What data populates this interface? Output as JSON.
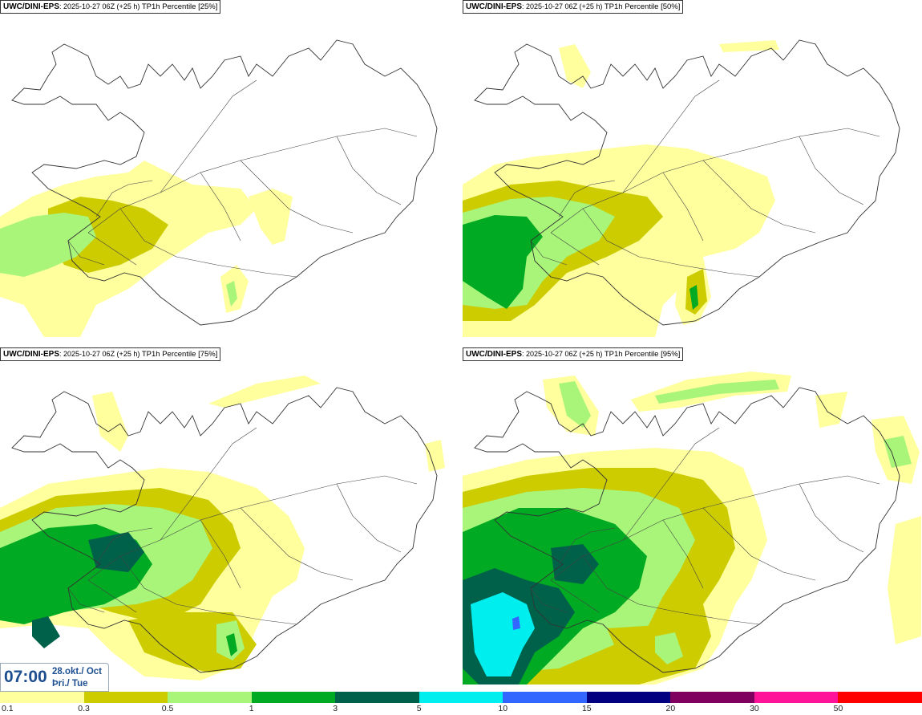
{
  "panels": [
    {
      "model": "UWC/DINI-EPS",
      "run": "2025-10-27 06Z (+25 h)",
      "param": "TP1h Percentile [25%]"
    },
    {
      "model": "UWC/DINI-EPS",
      "run": "2025-10-27 06Z (+25 h)",
      "param": "TP1h Percentile [50%]"
    },
    {
      "model": "UWC/DINI-EPS",
      "run": "2025-10-27 06Z (+25 h)",
      "param": "TP1h Percentile [75%]"
    },
    {
      "model": "UWC/DINI-EPS",
      "run": "2025-10-27 06Z (+25 h)",
      "param": "TP1h Percentile [95%]"
    }
  ],
  "valid_time": {
    "time": "07:00",
    "date_line1": "28.okt./ Oct",
    "date_line2": "Þri./ Tue"
  },
  "legend": {
    "labels": [
      "0.1",
      "0.3",
      "0.5",
      "1",
      "3",
      "5",
      "10",
      "15",
      "20",
      "30",
      "50"
    ],
    "colors": [
      "#ffff9e",
      "#cccc00",
      "#a8f57a",
      "#00aa22",
      "#00614a",
      "#00eeee",
      "#3366ff",
      "#000080",
      "#800060",
      "#ff1499",
      "#ff0000"
    ]
  }
}
